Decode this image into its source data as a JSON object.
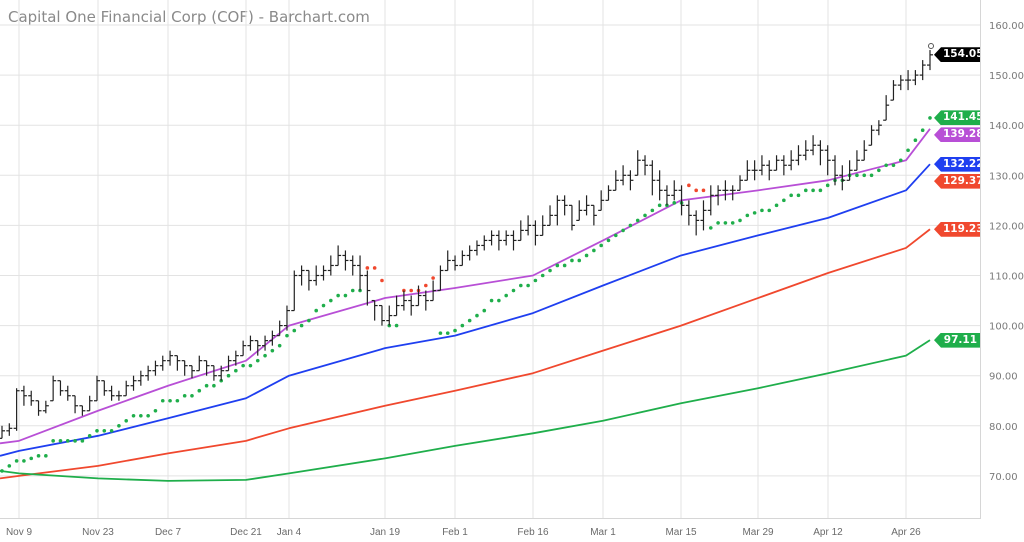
{
  "title": "Capital One Financial Corp (COF) - Barchart.com",
  "chart_data": {
    "type": "ohlc-bar",
    "title": "Capital One Financial Corp (COF) - Barchart.com",
    "ylim": [
      65,
      163
    ],
    "y_ticks": [
      "160.00",
      "150.00",
      "140.00",
      "130.00",
      "120.00",
      "110.00",
      "100.00",
      "90.00",
      "80.00",
      "70.00"
    ],
    "y_tick_values": [
      160,
      150,
      140,
      130,
      120,
      110,
      100,
      90,
      80,
      70
    ],
    "x_ticks": [
      "Nov 9",
      "Nov 23",
      "Dec 7",
      "Dec 21",
      "Jan 4",
      "Jan 19",
      "Feb 1",
      "Feb 16",
      "Mar 1",
      "Mar 15",
      "Mar 29",
      "Apr 12",
      "Apr 26"
    ],
    "x_tick_bar_index": [
      2,
      13,
      22,
      31,
      37,
      49,
      58,
      68,
      78,
      89,
      98,
      108,
      119
    ],
    "grid": true,
    "bars_low_high_close": [
      [
        77.5,
        80,
        79
      ],
      [
        78,
        80.5,
        79.5
      ],
      [
        79,
        87.5,
        87
      ],
      [
        84,
        88,
        86
      ],
      [
        84,
        87,
        85
      ],
      [
        82,
        85,
        83
      ],
      [
        82.5,
        85,
        84
      ],
      [
        85,
        90,
        89
      ],
      [
        86,
        89,
        87
      ],
      [
        85,
        88,
        86
      ],
      [
        82.5,
        86,
        84
      ],
      [
        82,
        84,
        83
      ],
      [
        83,
        86,
        85
      ],
      [
        85,
        90,
        89
      ],
      [
        86,
        89,
        87
      ],
      [
        85,
        88,
        86
      ],
      [
        85,
        87,
        86
      ],
      [
        86,
        89,
        88
      ],
      [
        87,
        90,
        89
      ],
      [
        88,
        91,
        90
      ],
      [
        89,
        92,
        91
      ],
      [
        90,
        93,
        92
      ],
      [
        91,
        94,
        93
      ],
      [
        92,
        95,
        94
      ],
      [
        91,
        94,
        93
      ],
      [
        90,
        93,
        92
      ],
      [
        89.5,
        92,
        91
      ],
      [
        91,
        94,
        93
      ],
      [
        90,
        93,
        92
      ],
      [
        89,
        92,
        90
      ],
      [
        89,
        92,
        91
      ],
      [
        91,
        94,
        93
      ],
      [
        92,
        95,
        94
      ],
      [
        94,
        97,
        96
      ],
      [
        95,
        98,
        97
      ],
      [
        94,
        97,
        96
      ],
      [
        95,
        98,
        97
      ],
      [
        96,
        99,
        98
      ],
      [
        98,
        101,
        100
      ],
      [
        99,
        104,
        103
      ],
      [
        103,
        111,
        110
      ],
      [
        108,
        112,
        111
      ],
      [
        107,
        111,
        109
      ],
      [
        108,
        112,
        110
      ],
      [
        109,
        112,
        111
      ],
      [
        110,
        114,
        112
      ],
      [
        112,
        116,
        114
      ],
      [
        111,
        115,
        113
      ],
      [
        110,
        114,
        112
      ],
      [
        107,
        114,
        110
      ],
      [
        104,
        111,
        107
      ],
      [
        101,
        105,
        104
      ],
      [
        100,
        104,
        101
      ],
      [
        100,
        104,
        102
      ],
      [
        102,
        106,
        104
      ],
      [
        103,
        107,
        105
      ],
      [
        102,
        106,
        104
      ],
      [
        104,
        108,
        106
      ],
      [
        103,
        107,
        105
      ],
      [
        105,
        109,
        107
      ],
      [
        107,
        112,
        111
      ],
      [
        111,
        115,
        113
      ],
      [
        111,
        114,
        112
      ],
      [
        112,
        115,
        114
      ],
      [
        113,
        116,
        115
      ],
      [
        114,
        117,
        116
      ],
      [
        115,
        118,
        117
      ],
      [
        116,
        119,
        118
      ],
      [
        115,
        119,
        117
      ],
      [
        116,
        119,
        118
      ],
      [
        115,
        119,
        117
      ],
      [
        117,
        121,
        119
      ],
      [
        118,
        122,
        120
      ],
      [
        116,
        121,
        118
      ],
      [
        118,
        122,
        120
      ],
      [
        120,
        124,
        122
      ],
      [
        120,
        126,
        125
      ],
      [
        122,
        126,
        124
      ],
      [
        119,
        124,
        120
      ],
      [
        121,
        125,
        123
      ],
      [
        122,
        126,
        124
      ],
      [
        120,
        124,
        122
      ],
      [
        123,
        127,
        125
      ],
      [
        125,
        128,
        127
      ],
      [
        127,
        131,
        129
      ],
      [
        128,
        132,
        130
      ],
      [
        127,
        131,
        129
      ],
      [
        130,
        135,
        133
      ],
      [
        130,
        134,
        132
      ],
      [
        126,
        133,
        129
      ],
      [
        125,
        131,
        127
      ],
      [
        124,
        128,
        126
      ],
      [
        125,
        129,
        127
      ],
      [
        122,
        128,
        124
      ],
      [
        120,
        125,
        122
      ],
      [
        118,
        123,
        121
      ],
      [
        119,
        125,
        123
      ],
      [
        122,
        128,
        126
      ],
      [
        124,
        128,
        127
      ],
      [
        125,
        129,
        127
      ],
      [
        125,
        128,
        127
      ],
      [
        127,
        130,
        129
      ],
      [
        129,
        133,
        131
      ],
      [
        129,
        133,
        131
      ],
      [
        130,
        134,
        132
      ],
      [
        129,
        133,
        131
      ],
      [
        131,
        134,
        133
      ],
      [
        130,
        134,
        132
      ],
      [
        131,
        135,
        133
      ],
      [
        132,
        136,
        134
      ],
      [
        133,
        137,
        135
      ],
      [
        134,
        138,
        136
      ],
      [
        132,
        137,
        135
      ],
      [
        130,
        136,
        133
      ],
      [
        128,
        134,
        130
      ],
      [
        127,
        132,
        129
      ],
      [
        129,
        133,
        131
      ],
      [
        131,
        135,
        133
      ],
      [
        133,
        137,
        135
      ],
      [
        136,
        140,
        139
      ],
      [
        138,
        141,
        140
      ],
      [
        141,
        146,
        144
      ],
      [
        145,
        149,
        148
      ],
      [
        147,
        150,
        149
      ],
      [
        147,
        151,
        149
      ],
      [
        148,
        151,
        150
      ],
      [
        149,
        153,
        152
      ],
      [
        151,
        155,
        154.05
      ]
    ],
    "moving_averages": [
      {
        "color": "#b84fd6",
        "last": "139.28",
        "values": [
          76.5,
          77,
          83,
          88,
          93,
          100,
          105.5,
          107.5,
          110,
          117,
          125,
          127,
          129,
          133,
          139.28
        ]
      },
      {
        "color": "#1f3ff0",
        "last": "132.22",
        "values": [
          74,
          75,
          78,
          81.5,
          85.5,
          90,
          95.5,
          98,
          102.5,
          108,
          114,
          118,
          121.5,
          127,
          132.22
        ]
      },
      {
        "color": "#f0482e",
        "last": "119.23",
        "values": [
          69.5,
          70,
          72,
          74.5,
          77,
          79.5,
          84,
          87,
          90.5,
          95,
          100,
          105.5,
          110.5,
          115.5,
          119.23
        ]
      },
      {
        "color": "#1fae4b",
        "last": "97.11",
        "values": [
          71,
          70.5,
          69.5,
          69,
          69.2,
          70.5,
          73.5,
          76,
          78.5,
          81,
          84.5,
          87.5,
          90.5,
          94,
          97.11
        ]
      }
    ],
    "parabolic_sar": [
      {
        "side": "below",
        "color": "#1fae4b",
        "start_bar": 0,
        "values": [
          71,
          72,
          73,
          73,
          73.5,
          74,
          74,
          77,
          77,
          77,
          77,
          77,
          78,
          79,
          79,
          79,
          80,
          81,
          82,
          82,
          82,
          83,
          85,
          85,
          85,
          86,
          86,
          87,
          88,
          88,
          89,
          90,
          91,
          92,
          92,
          93,
          94,
          95,
          96,
          98,
          99,
          100,
          101,
          103,
          104,
          105,
          106,
          106,
          107,
          107
        ]
      },
      {
        "side": "above",
        "color": "#f0482e",
        "start_bar": 50,
        "values": [
          111.5,
          111.5,
          109
        ]
      },
      {
        "side": "below",
        "color": "#1fae4b",
        "start_bar": 53,
        "values": [
          100,
          100
        ]
      },
      {
        "side": "above",
        "color": "#f0482e",
        "start_bar": 55,
        "values": [
          107,
          107,
          107,
          108,
          109.5
        ]
      },
      {
        "side": "below",
        "color": "#1fae4b",
        "start_bar": 60,
        "values": [
          98.5,
          98.5,
          99,
          100,
          101,
          102,
          103,
          105,
          105,
          106,
          107,
          108,
          108,
          109,
          110,
          111,
          112,
          112,
          113,
          113,
          114,
          115,
          116,
          117,
          118,
          119,
          120,
          121,
          122,
          123,
          124,
          124,
          124.5,
          124.5
        ]
      },
      {
        "side": "above",
        "color": "#f0482e",
        "start_bar": 94,
        "values": [
          128,
          127,
          127
        ]
      },
      {
        "side": "below",
        "color": "#1fae4b",
        "start_bar": 97,
        "values": [
          119.5,
          120.5,
          120.5,
          120.5,
          121,
          122,
          122.5,
          123,
          123,
          124,
          125,
          126,
          126,
          127,
          127,
          127,
          128,
          129,
          129,
          130,
          130,
          130,
          130,
          131,
          132,
          132,
          133,
          135,
          137,
          139,
          141.45
        ]
      }
    ],
    "price_tags": [
      {
        "label": "154.05",
        "value": 154.05,
        "color": "#000000"
      },
      {
        "label": "141.45",
        "value": 141.45,
        "color": "#1fae4b"
      },
      {
        "label": "139.28",
        "value": 139.28,
        "color": "#b84fd6"
      },
      {
        "label": "132.22",
        "value": 132.22,
        "color": "#1f3ff0"
      },
      {
        "label": "129.37",
        "value": 129.37,
        "color": "#f0482e"
      },
      {
        "label": "119.23",
        "value": 119.23,
        "color": "#f0482e"
      },
      {
        "label": "97.11",
        "value": 97.11,
        "color": "#1fae4b"
      }
    ]
  }
}
